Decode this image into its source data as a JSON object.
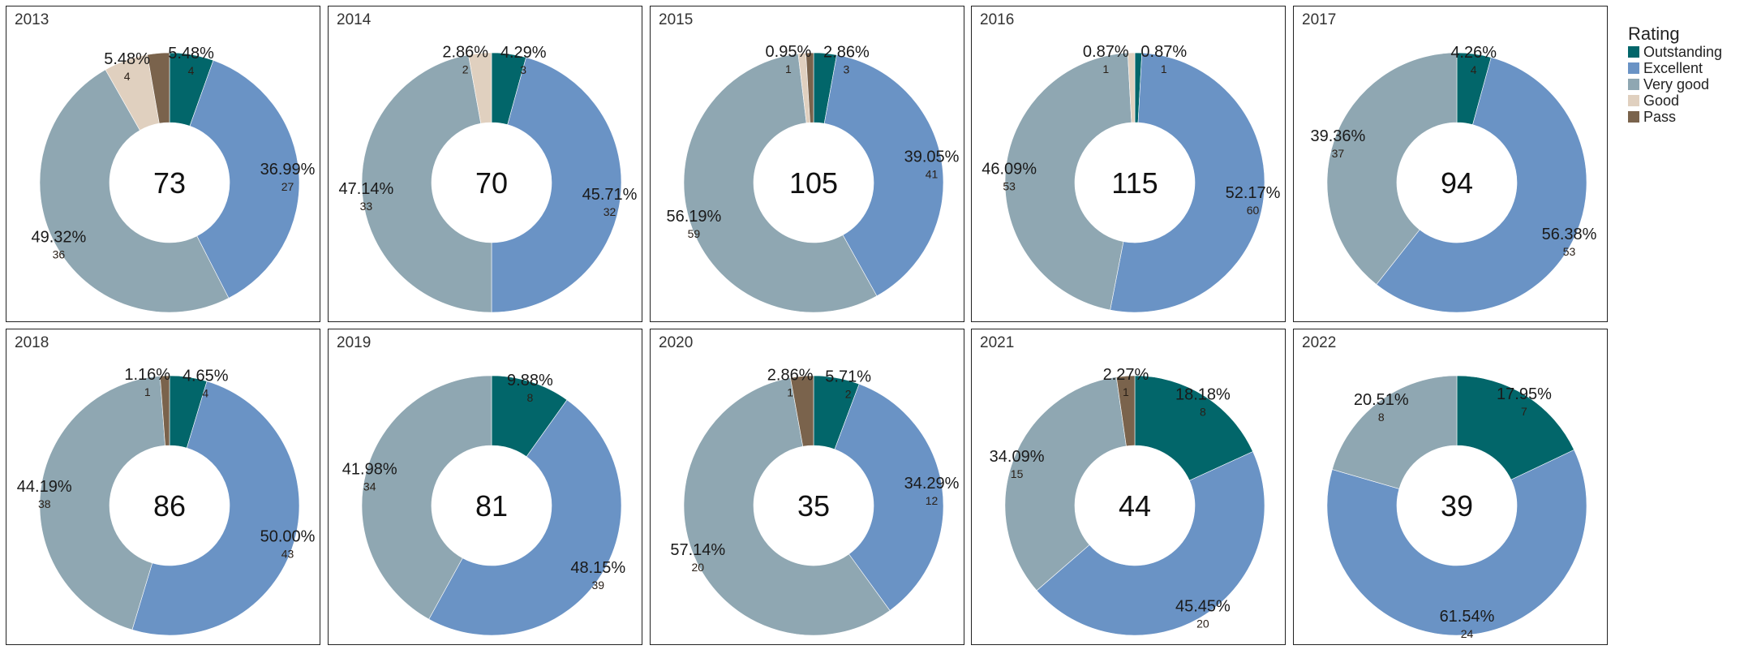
{
  "chart_data": {
    "type": "pie",
    "variant": "donut-small-multiples",
    "legend": {
      "title": "Rating",
      "position": "right",
      "categories": [
        "Outstanding",
        "Excellent",
        "Very good",
        "Good",
        "Pass"
      ],
      "colors": [
        "#02666a",
        "#6a93c5",
        "#8fa7b2",
        "#e0d0bf",
        "#7a634c"
      ]
    },
    "panels": [
      {
        "title": "2013",
        "total": "73",
        "values": [
          4,
          27,
          36,
          4,
          2
        ],
        "pct_labels": [
          "5.48%",
          "36.99%",
          "49.32%",
          "5.48%",
          null
        ]
      },
      {
        "title": "2014",
        "total": "70",
        "values": [
          3,
          32,
          33,
          2,
          0
        ],
        "pct_labels": [
          "4.29%",
          "45.71%",
          "47.14%",
          "2.86%",
          null
        ]
      },
      {
        "title": "2015",
        "total": "105",
        "values": [
          3,
          41,
          59,
          1,
          1
        ],
        "pct_labels": [
          "2.86%",
          "39.05%",
          "56.19%",
          null,
          "0.95%"
        ]
      },
      {
        "title": "2016",
        "total": "115",
        "values": [
          1,
          60,
          53,
          1,
          0
        ],
        "pct_labels": [
          "0.87%",
          "52.17%",
          "46.09%",
          "0.87%",
          null
        ]
      },
      {
        "title": "2017",
        "total": "94",
        "values": [
          4,
          53,
          37,
          0,
          0
        ],
        "pct_labels": [
          "4.26%",
          "56.38%",
          "39.36%",
          null,
          null
        ]
      },
      {
        "title": "2018",
        "total": "86",
        "values": [
          4,
          43,
          38,
          0,
          1
        ],
        "pct_labels": [
          "4.65%",
          "50.00%",
          "44.19%",
          null,
          "1.16%"
        ]
      },
      {
        "title": "2019",
        "total": "81",
        "values": [
          8,
          39,
          34,
          0,
          0
        ],
        "pct_labels": [
          "9.88%",
          "48.15%",
          "41.98%",
          null,
          null
        ]
      },
      {
        "title": "2020",
        "total": "35",
        "values": [
          2,
          12,
          20,
          0,
          1
        ],
        "pct_labels": [
          "5.71%",
          "34.29%",
          "57.14%",
          null,
          "2.86%"
        ]
      },
      {
        "title": "2021",
        "total": "44",
        "values": [
          8,
          20,
          15,
          0,
          1
        ],
        "pct_labels": [
          "18.18%",
          "45.45%",
          "34.09%",
          null,
          "2.27%"
        ]
      },
      {
        "title": "2022",
        "total": "39",
        "values": [
          7,
          24,
          8,
          0,
          0
        ],
        "pct_labels": [
          "17.95%",
          "61.54%",
          "20.51%",
          null,
          null
        ]
      }
    ]
  }
}
